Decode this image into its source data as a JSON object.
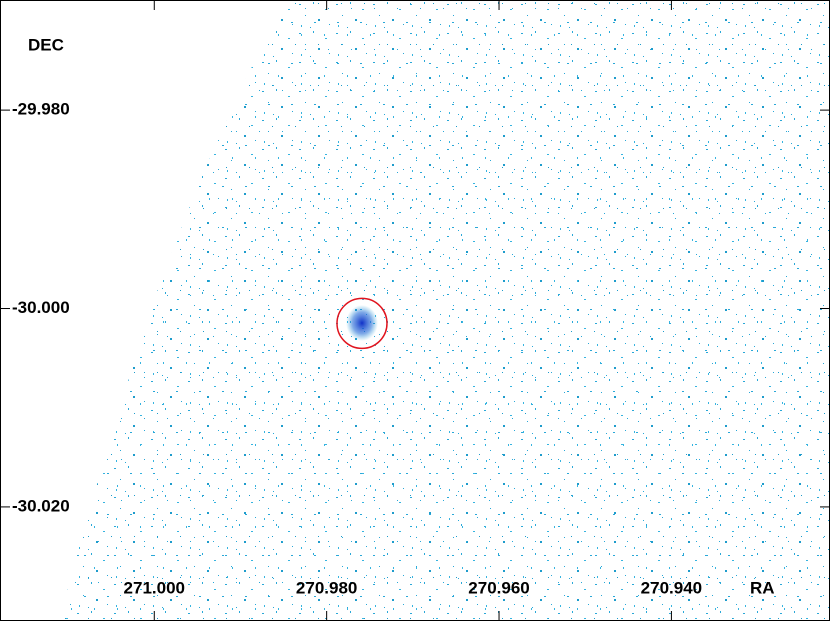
{
  "chart_data": {
    "type": "sky-image",
    "x_label": "RA",
    "y_label": "DEC",
    "xlim": [
      271.0179,
      270.9216
    ],
    "ylim": [
      -30.0315,
      -29.9689
    ],
    "xticks": [
      {
        "value": 271.0,
        "label": "271.000"
      },
      {
        "value": 270.98,
        "label": "270.980"
      },
      {
        "value": 270.96,
        "label": "270.960"
      },
      {
        "value": 270.94,
        "label": "270.940"
      }
    ],
    "yticks": [
      {
        "value": -29.98,
        "label": "-29.980"
      },
      {
        "value": -30.0,
        "label": "-30.000"
      },
      {
        "value": -30.02,
        "label": "-30.020"
      }
    ],
    "regions": [
      {
        "ra": 270.9759,
        "dec": -30.0015,
        "radius": 0.0029,
        "color": "#e0141e"
      }
    ]
  }
}
